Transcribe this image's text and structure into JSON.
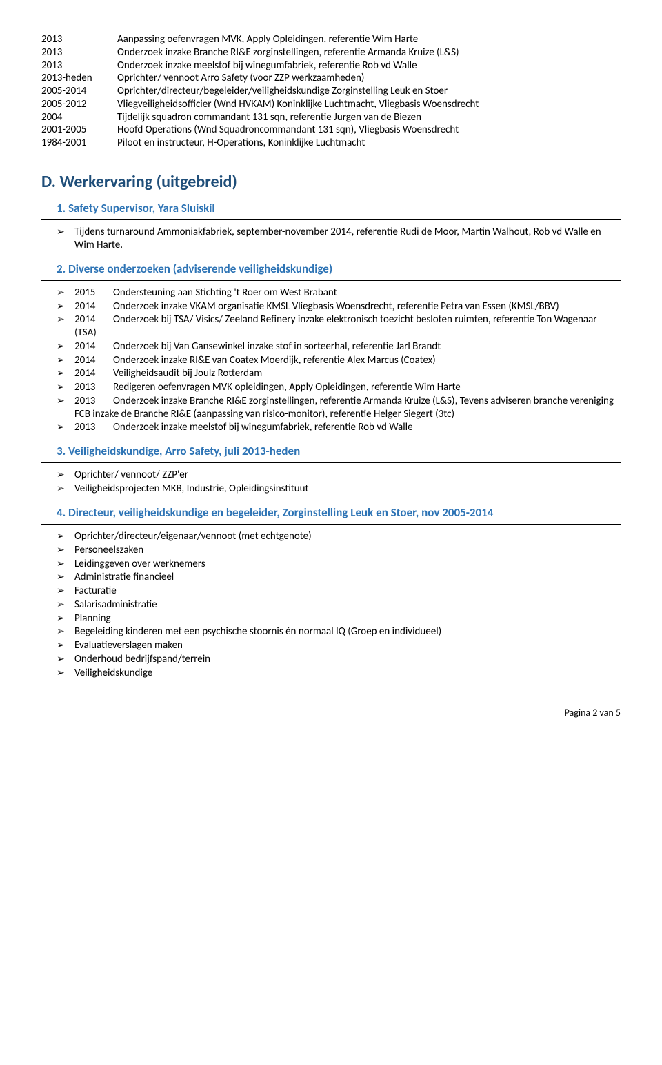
{
  "timeline": [
    {
      "year": "2013",
      "desc": "Aanpassing oefenvragen MVK, Apply Opleidingen, referentie Wim Harte"
    },
    {
      "year": "2013",
      "desc": "Onderzoek inzake Branche RI&E zorginstellingen, referentie Armanda Kruize (L&S)"
    },
    {
      "year": "2013",
      "desc": "Onderzoek inzake meelstof bij winegumfabriek, referentie Rob vd Walle"
    },
    {
      "year": "2013-heden",
      "desc": "Oprichter/ vennoot Arro Safety (voor ZZP werkzaamheden)"
    },
    {
      "year": "2005-2014",
      "desc": "Oprichter/directeur/begeleider/veiligheidskundige Zorginstelling Leuk en Stoer"
    },
    {
      "year": "2005-2012",
      "desc": "Vliegveiligheidsofficier (Wnd HVKAM) Koninklijke Luchtmacht, Vliegbasis Woensdrecht"
    },
    {
      "year": "2004",
      "desc": "Tijdelijk squadron commandant 131 sqn, referentie Jurgen van de Biezen"
    },
    {
      "year": "2001-2005",
      "desc": "Hoofd Operations (Wnd Squadroncommandant 131 sqn), Vliegbasis Woensdrecht"
    },
    {
      "year": "1984-2001",
      "desc": "Piloot en instructeur, H-Operations, Koninklijke Luchtmacht"
    }
  ],
  "sectionD": {
    "title": "D. Werkervaring (uitgebreid)",
    "sub1": {
      "title": "1. Safety Supervisor, Yara Sluiskil",
      "bullets": [
        "Tijdens turnaround Ammoniakfabriek, september-november 2014, referentie Rudi de Moor, Martin Walhout, Rob vd Walle en Wim Harte."
      ]
    },
    "sub2": {
      "title": "2. Diverse onderzoeken (adviserende veiligheidskundige)",
      "items": [
        {
          "year": "2015",
          "desc": "Ondersteuning aan Stichting 't Roer om West Brabant"
        },
        {
          "year": "2014",
          "desc": "Onderzoek inzake VKAM organisatie KMSL Vliegbasis Woensdrecht, referentie Petra van Essen (KMSL/BBV)"
        },
        {
          "year": "2014",
          "desc": "Onderzoek bij TSA/ Visics/ Zeeland Refinery inzake elektronisch toezicht besloten ruimten, referentie Ton Wagenaar (TSA)"
        },
        {
          "year": "2014",
          "desc": "Onderzoek bij Van Gansewinkel inzake stof in sorteerhal, referentie Jarl Brandt"
        },
        {
          "year": "2014",
          "desc": "Onderzoek inzake RI&E van Coatex Moerdijk, referentie Alex Marcus (Coatex)"
        },
        {
          "year": "2014",
          "desc": "Veiligheidsaudit bij Joulz Rotterdam"
        },
        {
          "year": "2013",
          "desc": "Redigeren oefenvragen MVK opleidingen, Apply Opleidingen, referentie Wim Harte"
        },
        {
          "year": "2013",
          "desc": "Onderzoek inzake Branche RI&E zorginstellingen, referentie Armanda Kruize (L&S), Tevens adviseren branche vereniging FCB inzake de Branche RI&E (aanpassing van risico-monitor), referentie Helger Siegert (3tc)"
        },
        {
          "year": "2013",
          "desc": "Onderzoek inzake meelstof bij winegumfabriek, referentie Rob vd Walle"
        }
      ]
    },
    "sub3": {
      "title": "3. Veiligheidskundige, Arro Safety, juli 2013-heden",
      "bullets": [
        "Oprichter/ vennoot/ ZZP'er",
        "Veiligheidsprojecten MKB, Industrie, Opleidingsinstituut"
      ]
    },
    "sub4": {
      "title": "4.  Directeur, veiligheidskundige en begeleider, Zorginstelling Leuk en Stoer, nov 2005-2014",
      "bullets": [
        "Oprichter/directeur/eigenaar/vennoot (met echtgenote)",
        "Personeelszaken",
        "Leidinggeven over werknemers",
        "Administratie financieel",
        "Facturatie",
        "Salarisadministratie",
        "Planning",
        "Begeleiding kinderen met een psychische stoornis én normaal IQ (Groep en individueel)",
        "Evaluatieverslagen maken",
        "Onderhoud bedrijfspand/terrein",
        "Veiligheidskundige"
      ]
    }
  },
  "footer": "Pagina 2 van 5"
}
